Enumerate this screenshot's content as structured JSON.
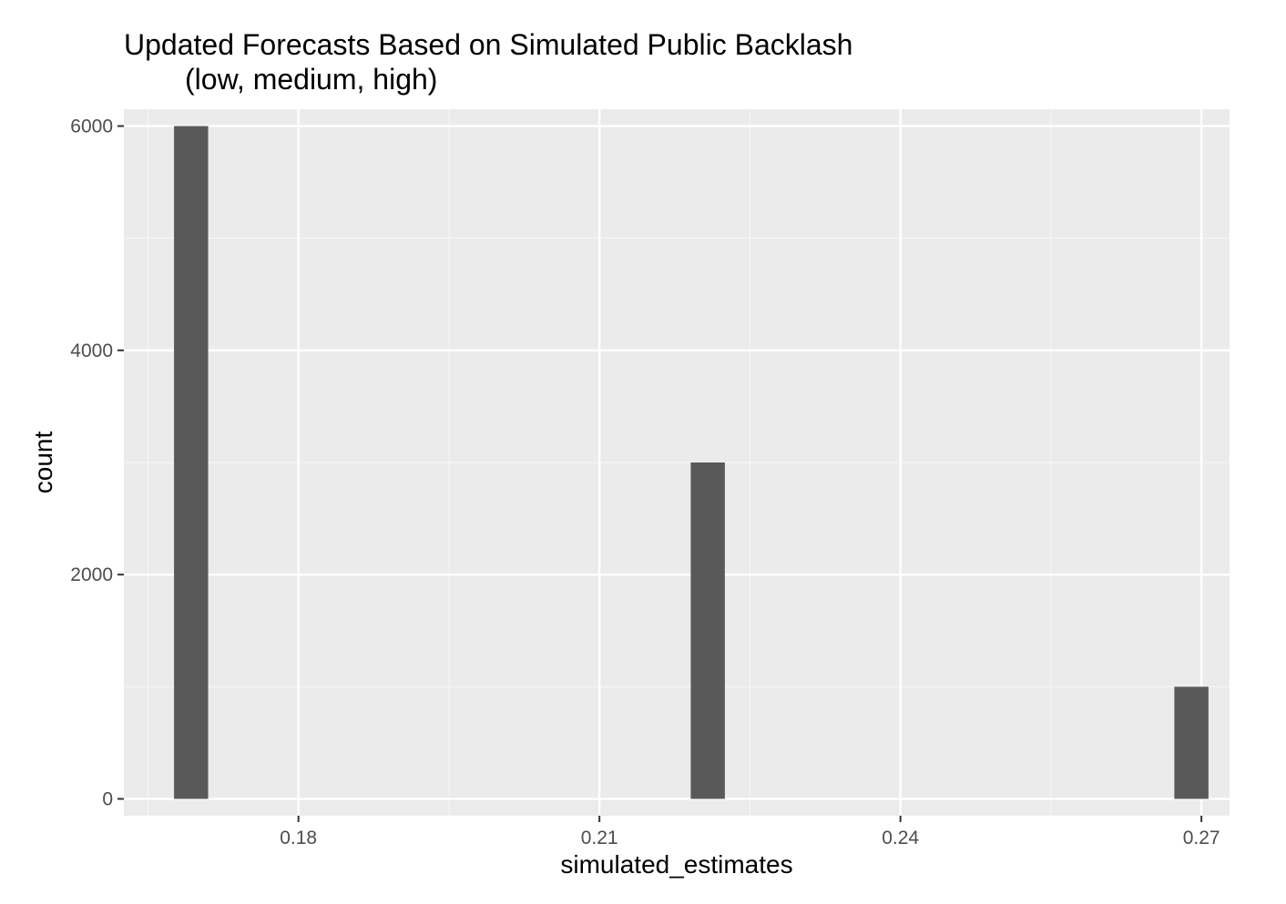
{
  "chart_data": {
    "type": "bar",
    "title_lines": [
      "Updated Forecasts Based on Simulated Public Backlash",
      "(low, medium, high)"
    ],
    "xlabel": "simulated_estimates",
    "ylabel": "count",
    "xlim": [
      0.1626,
      0.2728
    ],
    "ylim": [
      -150,
      6150
    ],
    "x_ticks": [
      0.18,
      0.21,
      0.24,
      0.27
    ],
    "x_tick_labels": [
      "0.18",
      "0.21",
      "0.24",
      "0.27"
    ],
    "y_ticks": [
      0,
      2000,
      4000,
      6000
    ],
    "y_tick_labels": [
      "0",
      "2000",
      "4000",
      "6000"
    ],
    "bin_width": 0.0034,
    "bars": [
      {
        "x": 0.1693,
        "count": 6000
      },
      {
        "x": 0.2208,
        "count": 3000
      },
      {
        "x": 0.269,
        "count": 1000
      }
    ],
    "grid": true,
    "colors": {
      "panel": "#ebebeb",
      "grid_major": "#ffffff",
      "grid_minor": "#f5f5f5",
      "bar": "#595959",
      "tick": "#333333"
    }
  }
}
